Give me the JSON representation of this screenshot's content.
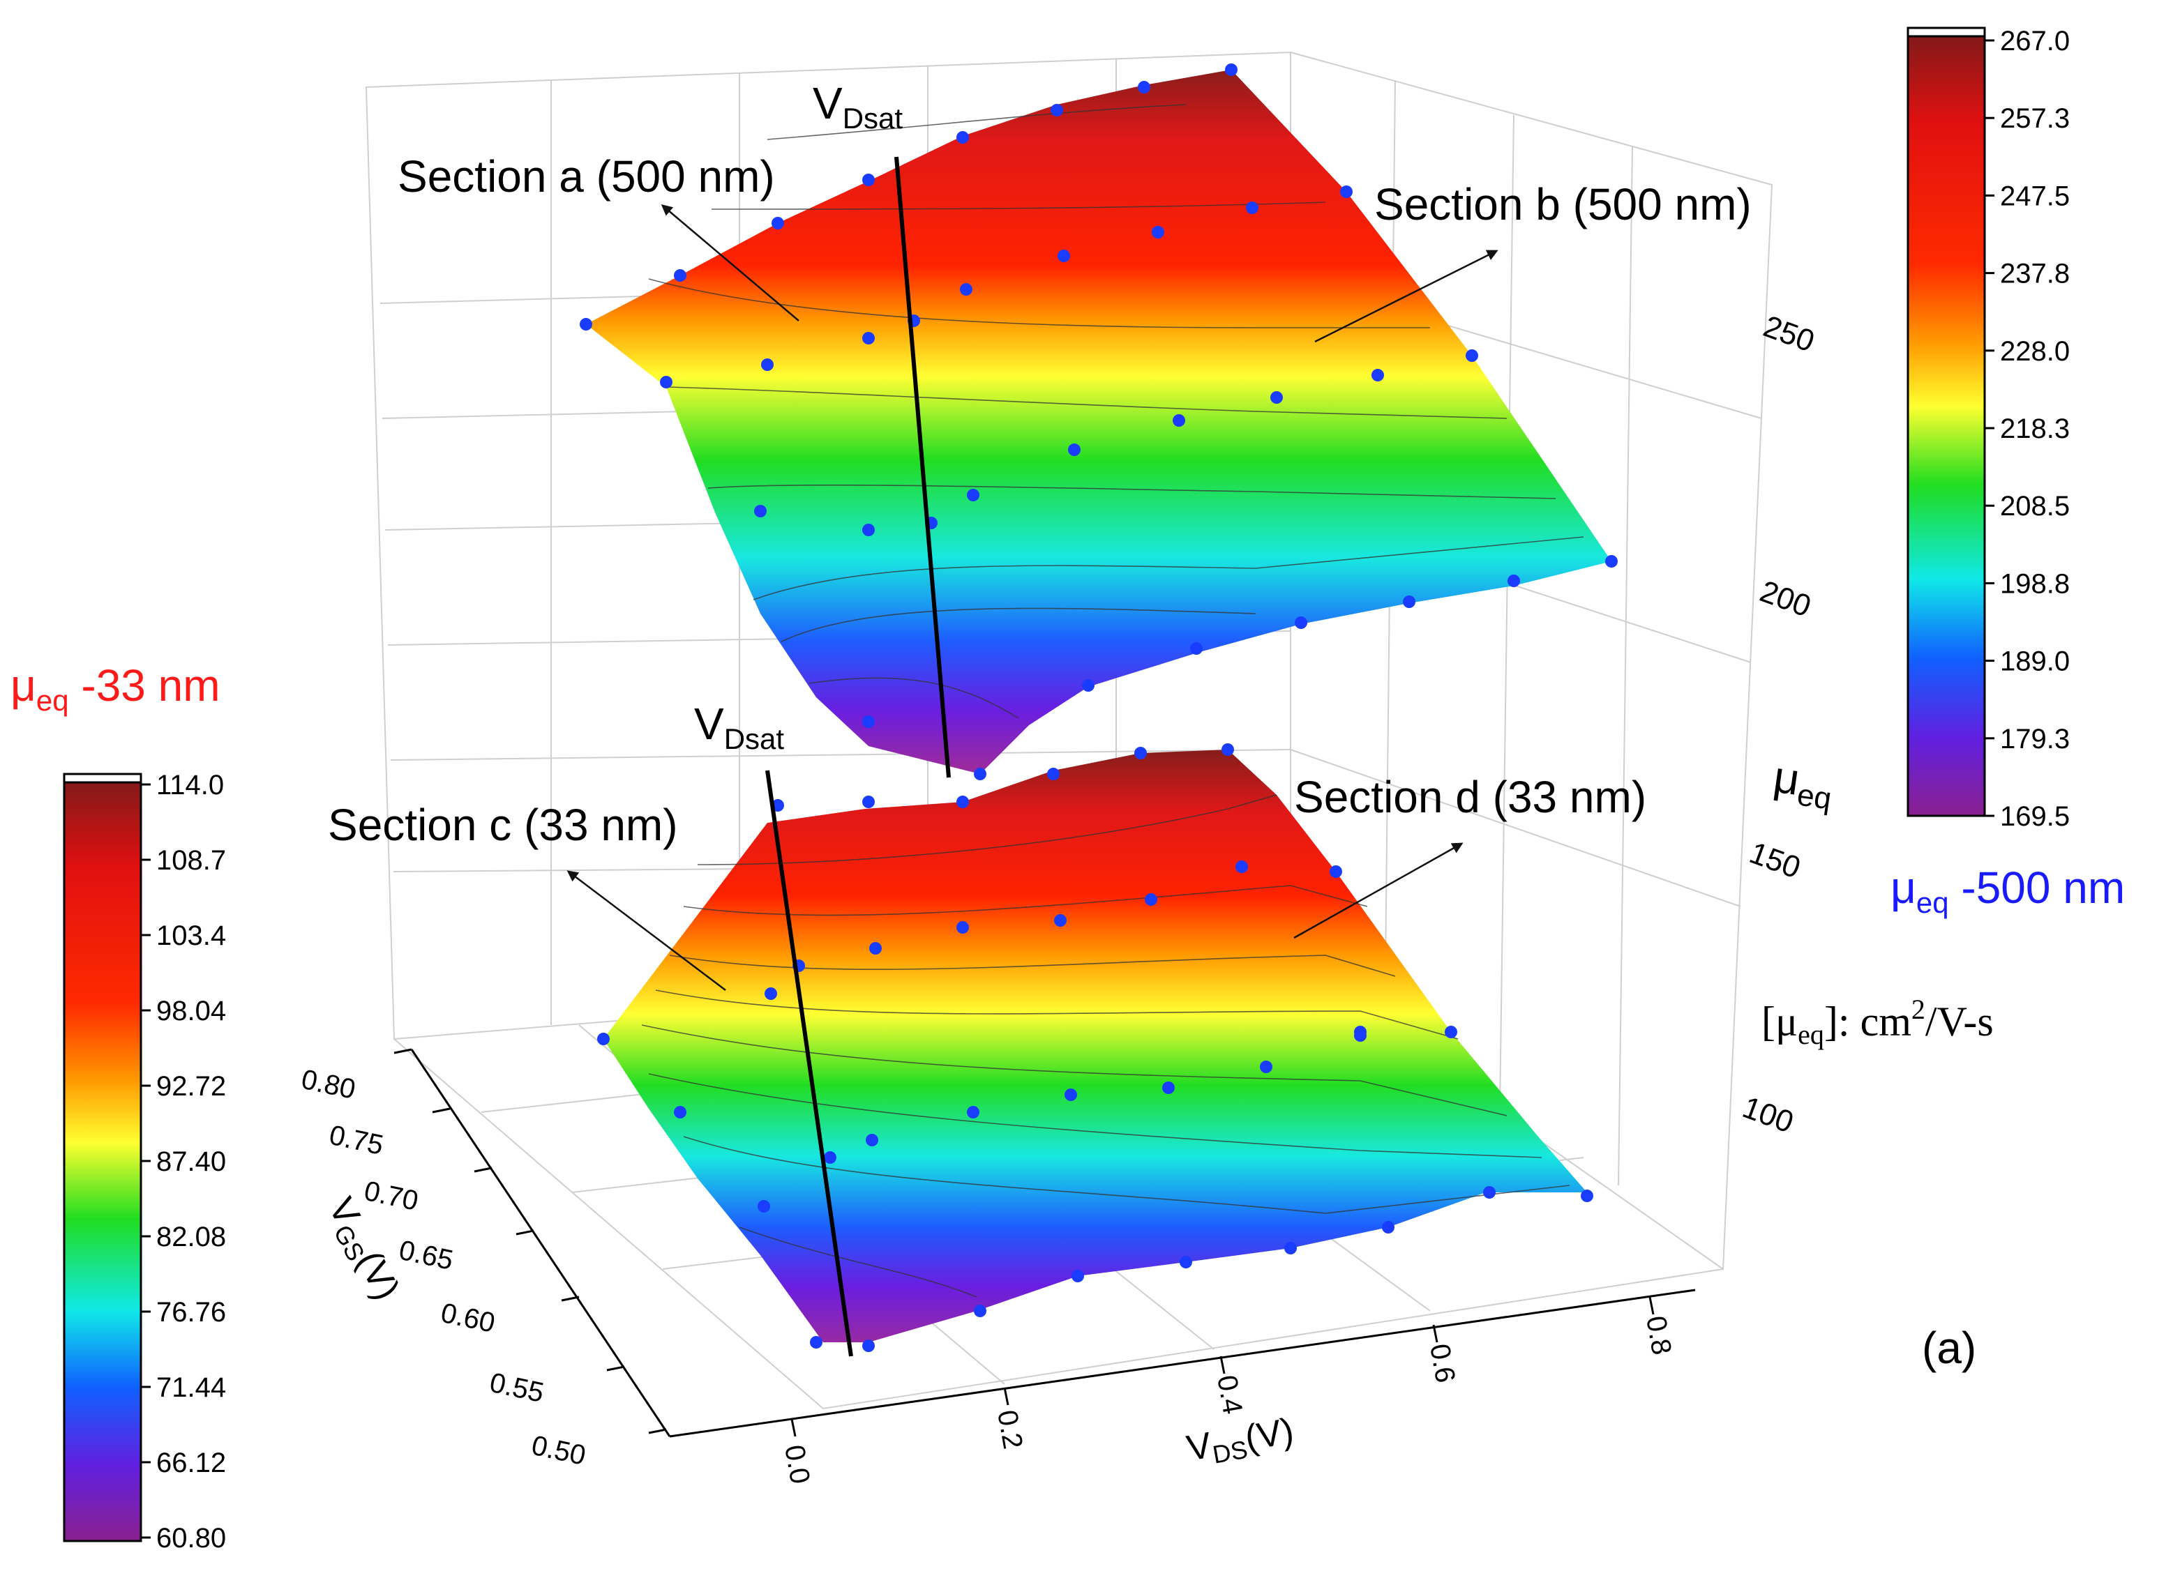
{
  "chart_data": {
    "type": "surface3d",
    "panel_label": "(a)",
    "axes": {
      "x": {
        "label_main": "V",
        "label_sub": "DS",
        "label_tail": "(V)",
        "ticks": [
          "0.0",
          "0.2",
          "0.4",
          "0.6",
          "0.8"
        ]
      },
      "y": {
        "label_main": "V",
        "label_sub": "GS",
        "label_tail": "(V)",
        "ticks": [
          "0.50",
          "0.55",
          "0.60",
          "0.65",
          "0.70",
          "0.75",
          "0.80"
        ]
      },
      "z": {
        "label_main": "μ",
        "label_sub": "eq",
        "ticks": [
          "100",
          "150",
          "200",
          "250"
        ],
        "range": [
          80,
          270
        ]
      }
    },
    "units_note": {
      "open": "[μ",
      "sub": "eq",
      "mid": "]: cm",
      "sup": "2",
      "tail": "/V-s"
    },
    "surfaces": [
      {
        "name": "500 nm",
        "legend_prefix": "μ",
        "legend_sub": "eq",
        "legend_suffix": " -500 nm",
        "legend_color": "#1a1aff",
        "colorbar_ticks": [
          "267.0",
          "257.3",
          "247.5",
          "237.8",
          "228.0",
          "218.3",
          "208.5",
          "198.8",
          "189.0",
          "179.3",
          "169.5"
        ],
        "colorbar_range": [
          169.5,
          267.0
        ]
      },
      {
        "name": "33 nm",
        "legend_prefix": "μ",
        "legend_sub": "eq",
        "legend_suffix": " -33 nm",
        "legend_color": "#ff1a1a",
        "colorbar_ticks": [
          "114.0",
          "108.7",
          "103.4",
          "98.04",
          "92.72",
          "87.40",
          "82.08",
          "76.76",
          "71.44",
          "66.12",
          "60.80"
        ],
        "colorbar_range": [
          60.8,
          114.0
        ]
      }
    ],
    "annotations": [
      {
        "id": "sec-a",
        "text": "Section a (500 nm)"
      },
      {
        "id": "sec-b",
        "text": "Section b (500 nm)"
      },
      {
        "id": "sec-c",
        "text": "Section c (33 nm)"
      },
      {
        "id": "sec-d",
        "text": "Section d (33 nm)"
      },
      {
        "id": "vdsat-top",
        "main": "V",
        "sub": "Dsat"
      },
      {
        "id": "vdsat-bottom",
        "main": "V",
        "sub": "Dsat"
      }
    ]
  }
}
